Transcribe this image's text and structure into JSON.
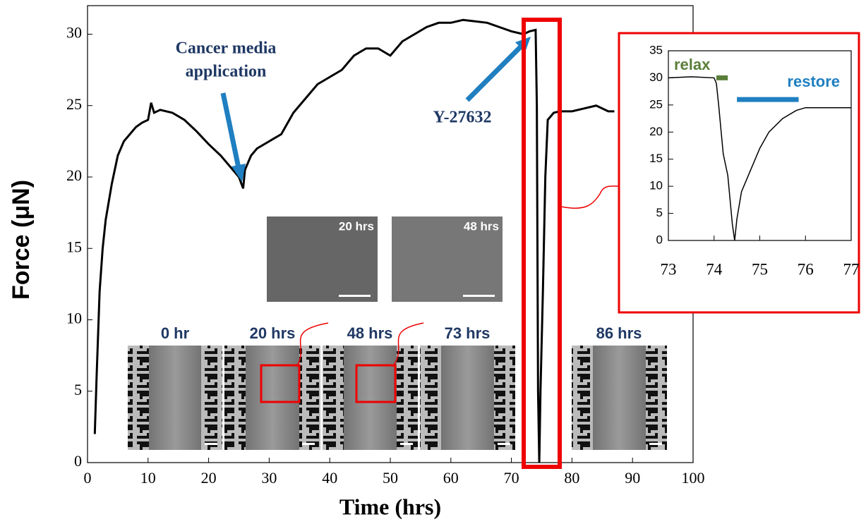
{
  "chart_data": [
    {
      "type": "line",
      "x_label": "Time (hrs)",
      "y_label": "Force (μN)",
      "xlim": [
        0,
        100
      ],
      "xticks": [
        0,
        10,
        20,
        30,
        40,
        50,
        60,
        70,
        80,
        90,
        100
      ],
      "ylim": [
        0,
        32
      ],
      "yticks": [
        0,
        5,
        10,
        15,
        20,
        25,
        30
      ],
      "x": [
        1.2,
        1.5,
        2,
        2.5,
        3,
        4,
        5,
        6,
        7,
        8,
        9,
        10,
        10.5,
        11,
        12,
        14,
        16,
        18,
        20,
        22,
        24,
        25,
        25.7,
        26,
        27,
        28,
        30,
        32,
        34,
        36,
        38,
        40,
        42,
        44,
        46,
        48,
        50,
        52,
        54,
        56,
        58,
        60,
        62,
        64,
        66,
        68,
        70,
        72,
        73,
        74,
        74.2,
        74.4,
        74.6,
        74.8,
        75.2,
        75.6,
        76,
        77,
        78,
        80,
        82,
        84,
        86,
        87
      ],
      "series": [
        {
          "color": "#000000",
          "values": [
            2,
            6,
            12,
            15,
            17,
            19.5,
            21.5,
            22.5,
            23,
            23.5,
            23.8,
            24,
            25.2,
            24.5,
            24.7,
            24.5,
            24,
            23.2,
            22.3,
            21.5,
            20.5,
            20,
            19.2,
            20.5,
            21.5,
            22,
            22.5,
            23,
            24.5,
            25.5,
            26.5,
            27,
            27.5,
            28.5,
            29,
            29,
            28.5,
            29.5,
            30,
            30.5,
            30.8,
            30.8,
            31,
            30.9,
            30.8,
            30.5,
            30.2,
            30,
            30.2,
            30.3,
            25,
            5,
            0,
            5,
            12,
            20,
            24,
            24.5,
            24.6,
            24.6,
            24.8,
            25,
            24.6,
            24.6
          ]
        }
      ],
      "annotations": [
        "Cancer media",
        "application",
        "Y-27632"
      ],
      "image_labels": [
        "0 hr",
        "20 hrs",
        "48 hrs",
        "73 hrs",
        "86 hrs",
        "20 hrs",
        "48 hrs"
      ]
    },
    {
      "type": "line",
      "xlim": [
        73,
        77
      ],
      "xticks": [
        73,
        74,
        75,
        76,
        77
      ],
      "ylim": [
        0,
        35
      ],
      "yticks": [
        0,
        5,
        10,
        15,
        20,
        25,
        30,
        35
      ],
      "x": [
        73,
        73.5,
        74,
        74.05,
        74.1,
        74.2,
        74.3,
        74.4,
        74.45,
        74.5,
        74.6,
        74.8,
        75,
        75.2,
        75.5,
        75.8,
        76,
        77
      ],
      "series": [
        {
          "color": "#000000",
          "values": [
            30,
            30.2,
            30,
            29,
            25,
            16,
            12,
            3,
            0,
            4,
            9,
            13,
            17,
            20,
            22.5,
            24,
            24.5,
            24.5
          ]
        }
      ],
      "bars": [
        {
          "name": "relax",
          "color": "#5a7f3a",
          "x": [
            74.05,
            74.3
          ],
          "y": 30
        },
        {
          "name": "restore",
          "color": "#1f7fc1",
          "x": [
            74.5,
            75.85
          ],
          "y": 26
        }
      ]
    }
  ]
}
